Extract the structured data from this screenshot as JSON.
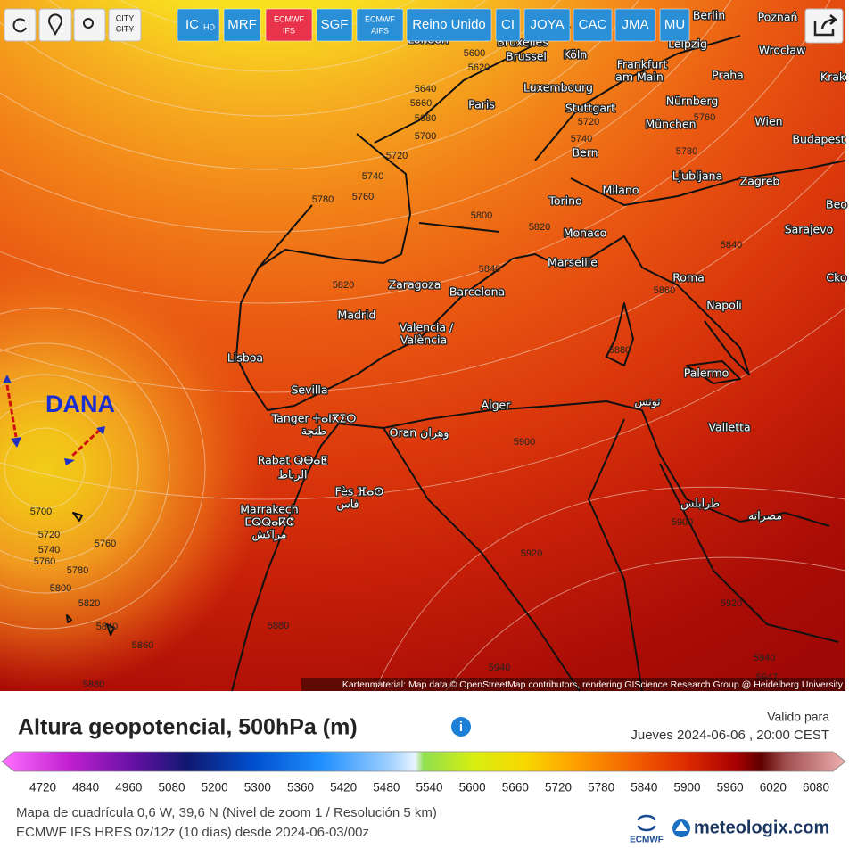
{
  "toolbar": {
    "city_toggle": [
      "CITY",
      "CITY"
    ],
    "buttons": [
      {
        "label": "IC",
        "sub": "HD"
      },
      {
        "label": "MRF"
      },
      {
        "label": "ECMWF",
        "sub": "IFS"
      },
      {
        "label": "SGF"
      },
      {
        "label": "ECMWF",
        "sub": "AIFS"
      },
      {
        "label": "Reino Unido"
      },
      {
        "label": "CI"
      },
      {
        "label": "JOYA"
      },
      {
        "label": "CAC"
      },
      {
        "label": "JMA"
      },
      {
        "label": "MU"
      }
    ]
  },
  "map": {
    "annotation": "DANA",
    "cities": [
      "Berlin",
      "Poznań",
      "London",
      "Bruxelles",
      "Brussel",
      "Köln",
      "Leipzig",
      "Wrocław",
      "Frankfurt",
      "am Main",
      "Praha",
      "Krak",
      "Luxembourg",
      "Paris",
      "Nürnberg",
      "Stuttgart",
      "München",
      "Wien",
      "Budapest",
      "Bern",
      "Ljubljana",
      "Zagreb",
      "Milano",
      "Torino",
      "Beo",
      "Monaco",
      "Sarajevo",
      "Marseille",
      "Zaragoza",
      "Barcelona",
      "Roma",
      "Cko",
      "Napoli",
      "Madrid",
      "Valencia /",
      "València",
      "Lisboa",
      "Palermo",
      "Sevilla",
      "تونس",
      "Alger",
      "Tanger ⵜⴰⵏⴳⵉⵔ",
      "طنجة",
      "Oran وهران",
      "Valletta",
      "Rabat ⵕⴱⴰⵟ",
      "الرباط",
      "Fès ⴼⴰⵙ",
      "فاس",
      "Marrakech",
      "ⵎⵕⵕⴰⴽⵛ",
      "مراكش",
      "طرابلس",
      "مصراته"
    ],
    "contour_labels": [
      5600,
      5620,
      5640,
      5660,
      5680,
      5700,
      5720,
      5740,
      5760,
      5780,
      5800,
      5820,
      5840,
      5820,
      5860,
      5880,
      5840,
      5760,
      5740,
      5720,
      5780,
      5900,
      5900,
      5920,
      5920,
      5940,
      5940,
      5947,
      5880,
      5860,
      5880,
      5840,
      5820,
      5800,
      5780,
      5760,
      5760,
      5740,
      5720,
      5700
    ],
    "attribution": "Kartenmaterial: Map data © OpenStreetMap contributors, rendering GIScience Research Group @ Heidelberg University"
  },
  "legend": {
    "title": "Altura geopotencial, 500hPa (m)",
    "valid_label": "Valido para",
    "valid_time": "Jueves 2024-06-06 , 20:00 CEST",
    "scale": [
      4720,
      4840,
      4960,
      5080,
      5200,
      5300,
      5360,
      5420,
      5480,
      5540,
      5600,
      5660,
      5720,
      5780,
      5840,
      5900,
      5960,
      6020,
      6080
    ],
    "footer": [
      "Mapa de cuadrícula 0,6 W, 39,6 N (Nivel de zoom 1 / Resolución 5 km)",
      "ECMWF IFS HRES 0z/12z (10 días) desde 2024-06-03/00z"
    ],
    "logos": [
      "ECMWF",
      "meteologix.com"
    ]
  }
}
